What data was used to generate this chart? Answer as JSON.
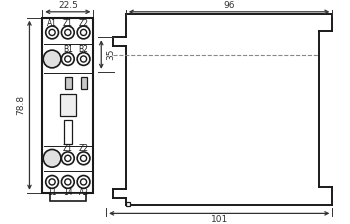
{
  "line_color": "#1a1a1a",
  "dim_color": "#333333",
  "dim_22_5": "22.5",
  "dim_78_8": "78.8",
  "dim_96": "96",
  "dim_35": "35",
  "dim_101": "101",
  "labels_top": [
    "A1",
    "Z1",
    "Z2"
  ],
  "labels_mid": [
    "B1",
    "B2"
  ],
  "labels_bot1": [
    "Z1",
    "Z2"
  ],
  "labels_bot2": [
    "11",
    "14",
    "A2"
  ]
}
